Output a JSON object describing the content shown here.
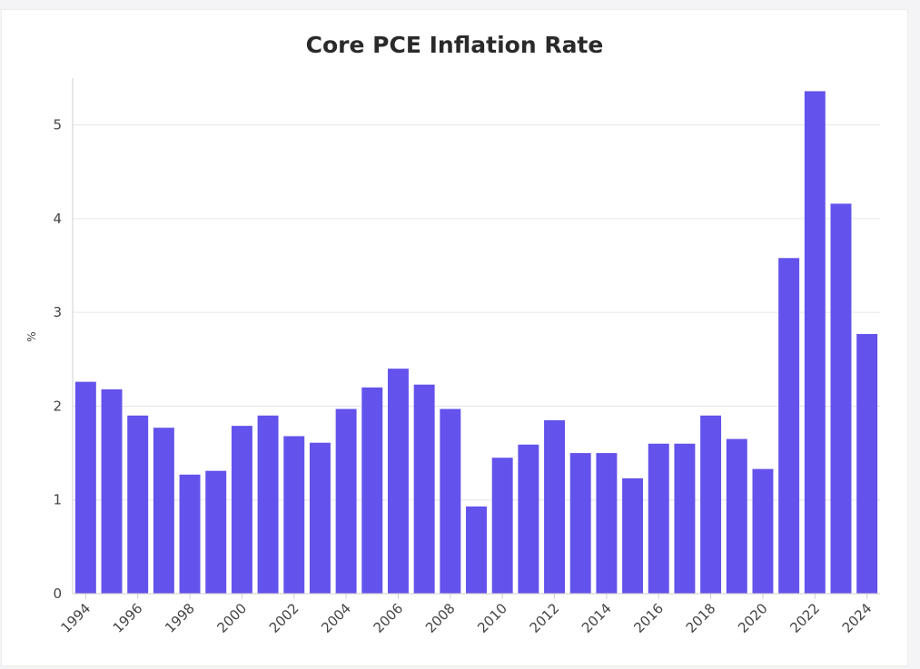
{
  "chart_data": {
    "type": "bar",
    "title": "Core PCE Inflation Rate",
    "xlabel": "",
    "ylabel": "%",
    "ylim": [
      0,
      5.5
    ],
    "yticks": [
      0,
      1,
      2,
      3,
      4,
      5
    ],
    "grid": true,
    "color": "#6352eb",
    "categories": [
      "1994",
      "1995",
      "1996",
      "1997",
      "1998",
      "1999",
      "2000",
      "2001",
      "2002",
      "2003",
      "2004",
      "2005",
      "2006",
      "2007",
      "2008",
      "2009",
      "2010",
      "2011",
      "2012",
      "2013",
      "2014",
      "2015",
      "2016",
      "2017",
      "2018",
      "2019",
      "2020",
      "2021",
      "2022",
      "2023",
      "2024"
    ],
    "x_tick_labels": [
      "1994",
      "1996",
      "1998",
      "2000",
      "2002",
      "2004",
      "2006",
      "2008",
      "2010",
      "2012",
      "2014",
      "2016",
      "2018",
      "2020",
      "2022",
      "2024"
    ],
    "values": [
      2.26,
      2.18,
      1.9,
      1.77,
      1.27,
      1.31,
      1.79,
      1.9,
      1.68,
      1.61,
      1.97,
      2.2,
      2.4,
      2.23,
      1.97,
      0.93,
      1.45,
      1.59,
      1.85,
      1.5,
      1.5,
      1.23,
      1.6,
      1.6,
      1.9,
      1.65,
      1.33,
      3.58,
      5.36,
      4.16,
      2.77
    ]
  }
}
